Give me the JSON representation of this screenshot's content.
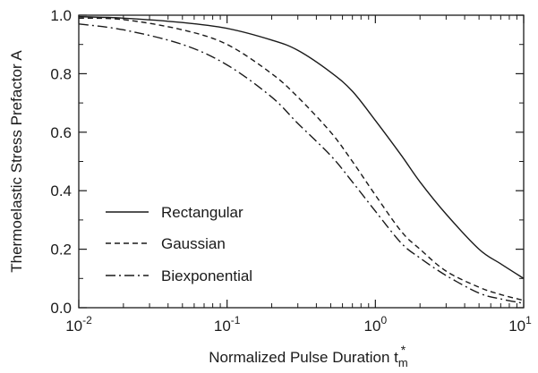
{
  "chart_data": {
    "type": "line",
    "xscale": "log",
    "xlim": [
      0.01,
      10
    ],
    "ylim": [
      0.0,
      1.0
    ],
    "grid": false,
    "legend_position": "lower-left",
    "xlabel": "Normalized Pulse Duration t",
    "xlabel_sub": "m",
    "xlabel_sup": "*",
    "ylabel": "Thermoelastic Stress Prefactor A",
    "xticks": [
      {
        "value": 0.01,
        "base": "10",
        "exp": "-2"
      },
      {
        "value": 0.1,
        "base": "10",
        "exp": "-1"
      },
      {
        "value": 1,
        "base": "10",
        "exp": "0"
      },
      {
        "value": 10,
        "base": "10",
        "exp": "1"
      }
    ],
    "yticks": [
      {
        "value": 0.0,
        "label": "0.0"
      },
      {
        "value": 0.2,
        "label": "0.2"
      },
      {
        "value": 0.4,
        "label": "0.4"
      },
      {
        "value": 0.6,
        "label": "0.6"
      },
      {
        "value": 0.8,
        "label": "0.8"
      },
      {
        "value": 1.0,
        "label": "1.0"
      }
    ],
    "series": [
      {
        "name": "Rectangular",
        "dash": "solid",
        "x": [
          0.01,
          0.02,
          0.05,
          0.1,
          0.2,
          0.3,
          0.5,
          0.7,
          1.0,
          1.5,
          2.0,
          3.0,
          5.0,
          7.0,
          10.0
        ],
        "y": [
          0.995,
          0.99,
          0.975,
          0.955,
          0.915,
          0.88,
          0.805,
          0.74,
          0.64,
          0.52,
          0.43,
          0.32,
          0.2,
          0.15,
          0.1
        ]
      },
      {
        "name": "Gaussian",
        "dash": "dashed",
        "x": [
          0.01,
          0.02,
          0.05,
          0.1,
          0.2,
          0.3,
          0.5,
          0.7,
          1.0,
          1.5,
          2.0,
          3.0,
          5.0,
          7.0,
          10.0
        ],
        "y": [
          0.99,
          0.985,
          0.95,
          0.9,
          0.8,
          0.72,
          0.6,
          0.5,
          0.385,
          0.26,
          0.2,
          0.125,
          0.07,
          0.045,
          0.025
        ]
      },
      {
        "name": "Biexponential",
        "dash": "dash-dot",
        "x": [
          0.01,
          0.02,
          0.05,
          0.1,
          0.2,
          0.3,
          0.5,
          0.7,
          1.0,
          1.5,
          2.0,
          3.0,
          5.0,
          7.0,
          10.0
        ],
        "y": [
          0.97,
          0.95,
          0.9,
          0.83,
          0.72,
          0.63,
          0.52,
          0.43,
          0.33,
          0.22,
          0.17,
          0.11,
          0.05,
          0.03,
          0.015
        ]
      }
    ]
  }
}
